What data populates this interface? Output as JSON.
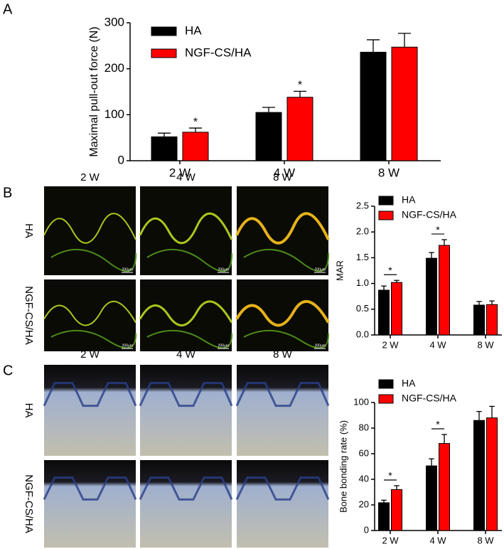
{
  "panels": [
    {
      "letter": "A"
    },
    {
      "letter": "B"
    },
    {
      "letter": "C"
    }
  ],
  "image_grids": [
    {
      "columns": [
        "2 W",
        "4 W",
        "8 W"
      ],
      "rows": [
        "HA",
        "NGF-CS/HA"
      ],
      "scale_bar": "200μm",
      "style": "fluorescence"
    },
    {
      "columns": [
        "2 W",
        "4 W",
        "8 W"
      ],
      "rows": [
        "HA",
        "NGF-CS/HA"
      ],
      "style": "histology"
    }
  ],
  "chart_data": [
    {
      "type": "bar",
      "ylabel": "Maximal pull-out force (N)",
      "categories": [
        "2 W",
        "4 W",
        "8 W"
      ],
      "series": [
        {
          "name": "HA",
          "color": "#000000",
          "values": [
            52,
            105,
            236
          ],
          "errors": [
            8,
            11,
            27
          ]
        },
        {
          "name": "NGF-CS/HA",
          "color": "#ff0000",
          "values": [
            62,
            138,
            247
          ],
          "errors": [
            9,
            13,
            30
          ]
        }
      ],
      "ylim": [
        0,
        300
      ],
      "yticks": [
        0,
        100,
        200,
        300
      ],
      "legend": "upper left",
      "brackets": false,
      "annotations": [
        {
          "text": "*",
          "category": "2 W"
        },
        {
          "text": "*",
          "category": "4 W"
        }
      ]
    },
    {
      "type": "bar",
      "ylabel": "MAR",
      "categories": [
        "2 W",
        "4 W",
        "8 W"
      ],
      "series": [
        {
          "name": "HA",
          "color": "#000000",
          "values": [
            0.87,
            1.49,
            0.58
          ],
          "errors": [
            0.08,
            0.11,
            0.07
          ]
        },
        {
          "name": "NGF-CS/HA",
          "color": "#ff0000",
          "values": [
            1.02,
            1.74,
            0.59
          ],
          "errors": [
            0.04,
            0.11,
            0.07
          ]
        }
      ],
      "ylim": [
        0,
        2.5
      ],
      "yticks": [
        {
          "value": 0,
          "label": "0.0"
        },
        0.5,
        {
          "value": 1,
          "label": "1.0"
        },
        1.5,
        {
          "value": 2,
          "label": "2.0"
        },
        2.5
      ],
      "legend": "upper left",
      "brackets": true,
      "annotations": [
        {
          "text": "*",
          "category": "2 W"
        },
        {
          "text": "*",
          "category": "4 W"
        }
      ]
    },
    {
      "type": "bar",
      "ylabel": "Bone bonding rate (%)",
      "categories": [
        "2 W",
        "4 W",
        "8 W"
      ],
      "series": [
        {
          "name": "HA",
          "color": "#000000",
          "values": [
            21.7,
            50.5,
            86
          ],
          "errors": [
            2,
            5.5,
            7
          ]
        },
        {
          "name": "NGF-CS/HA",
          "color": "#ff0000",
          "values": [
            32,
            68,
            88
          ],
          "errors": [
            3,
            7,
            9
          ]
        }
      ],
      "ylim": [
        0,
        100
      ],
      "yticks": [
        0,
        20,
        40,
        60,
        80,
        100
      ],
      "legend": "upper left",
      "brackets": true,
      "annotations": [
        {
          "text": "*",
          "category": "2 W"
        },
        {
          "text": "*",
          "category": "4 W"
        }
      ]
    }
  ]
}
